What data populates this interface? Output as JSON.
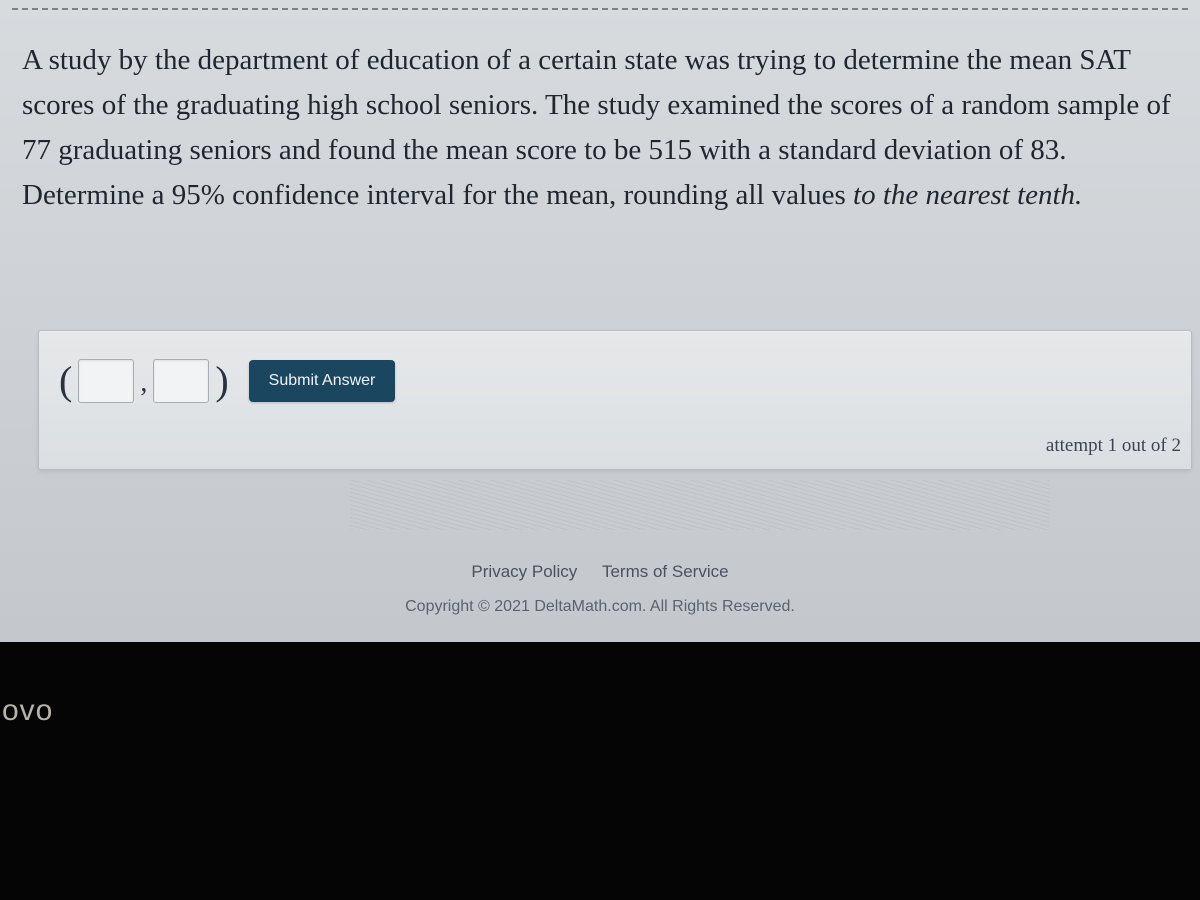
{
  "question": {
    "text_part1": "A study by the department of education of a certain state was trying to determine the mean SAT scores of the graduating high school seniors. The study examined the scores of a random sample of 77 graduating seniors and found the mean score to be 515 with a standard deviation of 83. Determine a 95% confidence interval for the mean, rounding all values ",
    "text_italic": "to the nearest tenth."
  },
  "answer_area": {
    "open_paren": "(",
    "comma": ",",
    "close_paren": ")",
    "input1_value": "",
    "input2_value": "",
    "submit_label": "Submit Answer",
    "attempt_text": "attempt 1 out of 2"
  },
  "footer": {
    "privacy_label": "Privacy Policy",
    "terms_label": "Terms of Service",
    "copyright_text": "Copyright © 2021 DeltaMath.com. All Rights Reserved."
  },
  "frame": {
    "ovo_text": "ovo"
  },
  "colors": {
    "screen_bg_top": "#d8dbde",
    "screen_bg_bottom": "#c2c6cb",
    "panel_bg": "#e6e8ea",
    "submit_bg": "#1b465f",
    "text_color": "#1f2630"
  }
}
